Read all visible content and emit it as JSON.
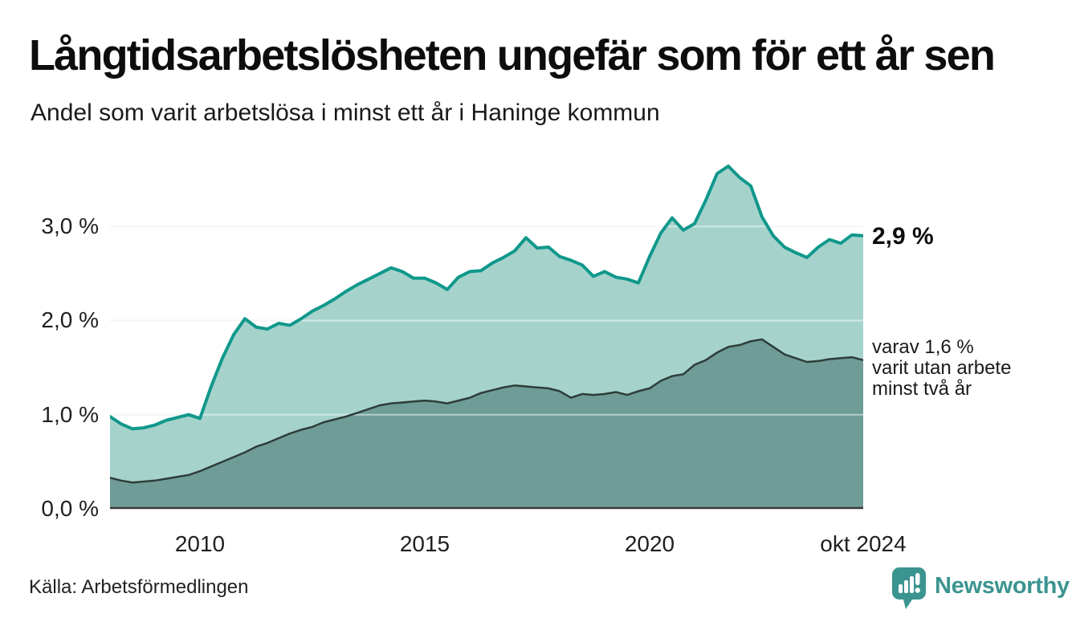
{
  "header": {
    "title": "Långtidsarbetslösheten ungefär som för ett år sen",
    "subtitle": "Andel som varit arbetslösa i minst ett år i Haninge kommun"
  },
  "colors": {
    "total_stroke": "#10988b",
    "total_fill": "#a5d3cc",
    "two_year_stroke": "#2e3d3a",
    "two_year_fill": "#6f9c96",
    "gridline": "#ececec",
    "gridline_overlay": "rgba(255,255,255,0.5)",
    "axis_line": "#3a3a3a",
    "brand_teal": "#3b9490"
  },
  "chart_data": {
    "type": "area",
    "title": "Långtidsarbetslösheten ungefär som för ett år sen",
    "subtitle": "Andel som varit arbetslösa i minst ett år i Haninge kommun",
    "x_unit": "decimal_year",
    "xlim": [
      2008,
      2024.75
    ],
    "ylim": [
      0,
      3.9
    ],
    "grid": "horizontal",
    "x": [
      2008,
      2008.25,
      2008.5,
      2008.75,
      2009,
      2009.25,
      2009.5,
      2009.75,
      2010,
      2010.25,
      2010.5,
      2010.75,
      2011,
      2011.25,
      2011.5,
      2011.75,
      2012,
      2012.25,
      2012.5,
      2012.75,
      2013,
      2013.25,
      2013.5,
      2013.75,
      2014,
      2014.25,
      2014.5,
      2014.75,
      2015,
      2015.25,
      2015.5,
      2015.75,
      2016,
      2016.25,
      2016.5,
      2016.75,
      2017,
      2017.25,
      2017.5,
      2017.75,
      2018,
      2018.25,
      2018.5,
      2018.75,
      2019,
      2019.25,
      2019.5,
      2019.75,
      2020,
      2020.25,
      2020.5,
      2020.75,
      2021,
      2021.25,
      2021.5,
      2021.75,
      2022,
      2022.25,
      2022.5,
      2022.75,
      2023,
      2023.25,
      2023.5,
      2023.75,
      2024,
      2024.25,
      2024.5,
      2024.75
    ],
    "series": [
      {
        "name": "Andel som varit arbetslösa i minst ett år",
        "end_label": "2,9 %",
        "values": [
          0.98,
          0.9,
          0.85,
          0.86,
          0.89,
          0.94,
          0.97,
          1.0,
          0.96,
          1.3,
          1.6,
          1.85,
          2.02,
          1.93,
          1.91,
          1.97,
          1.95,
          2.02,
          2.1,
          2.16,
          2.23,
          2.31,
          2.38,
          2.44,
          2.5,
          2.56,
          2.52,
          2.45,
          2.45,
          2.4,
          2.33,
          2.46,
          2.52,
          2.53,
          2.61,
          2.67,
          2.74,
          2.88,
          2.77,
          2.78,
          2.68,
          2.64,
          2.59,
          2.47,
          2.52,
          2.46,
          2.44,
          2.4,
          2.68,
          2.93,
          3.09,
          2.96,
          3.03,
          3.28,
          3.56,
          3.64,
          3.52,
          3.43,
          3.1,
          2.9,
          2.78,
          2.72,
          2.67,
          2.78,
          2.86,
          2.82,
          2.91,
          2.9
        ]
      },
      {
        "name": "varav utan arbete minst två år",
        "end_label": "1,6 %",
        "values": [
          0.33,
          0.3,
          0.28,
          0.29,
          0.3,
          0.32,
          0.34,
          0.36,
          0.4,
          0.45,
          0.5,
          0.55,
          0.6,
          0.66,
          0.7,
          0.75,
          0.8,
          0.84,
          0.87,
          0.92,
          0.95,
          0.98,
          1.02,
          1.06,
          1.1,
          1.12,
          1.13,
          1.14,
          1.15,
          1.14,
          1.12,
          1.15,
          1.18,
          1.23,
          1.26,
          1.29,
          1.31,
          1.3,
          1.29,
          1.28,
          1.25,
          1.18,
          1.22,
          1.21,
          1.22,
          1.24,
          1.21,
          1.25,
          1.28,
          1.36,
          1.41,
          1.43,
          1.53,
          1.58,
          1.66,
          1.72,
          1.74,
          1.78,
          1.8,
          1.72,
          1.64,
          1.6,
          1.56,
          1.57,
          1.59,
          1.6,
          1.61,
          1.58
        ]
      }
    ],
    "yticks": [
      {
        "value": 0,
        "label": "0,0 %"
      },
      {
        "value": 1,
        "label": "1,0 %"
      },
      {
        "value": 2,
        "label": "2,0 %"
      },
      {
        "value": 3,
        "label": "3,0 %"
      }
    ],
    "xticks": [
      {
        "value": 2010,
        "label": "2010"
      },
      {
        "value": 2015,
        "label": "2015"
      },
      {
        "value": 2020,
        "label": "2020"
      },
      {
        "value": 2024.75,
        "label": "okt 2024"
      }
    ],
    "annotations": {
      "end_value": "2,9 %",
      "note_lines": [
        "varav 1,6 %",
        "varit utan arbete",
        "minst två år"
      ]
    }
  },
  "footer": {
    "source": "Källa: Arbetsförmedlingen",
    "brand": "Newsworthy"
  }
}
